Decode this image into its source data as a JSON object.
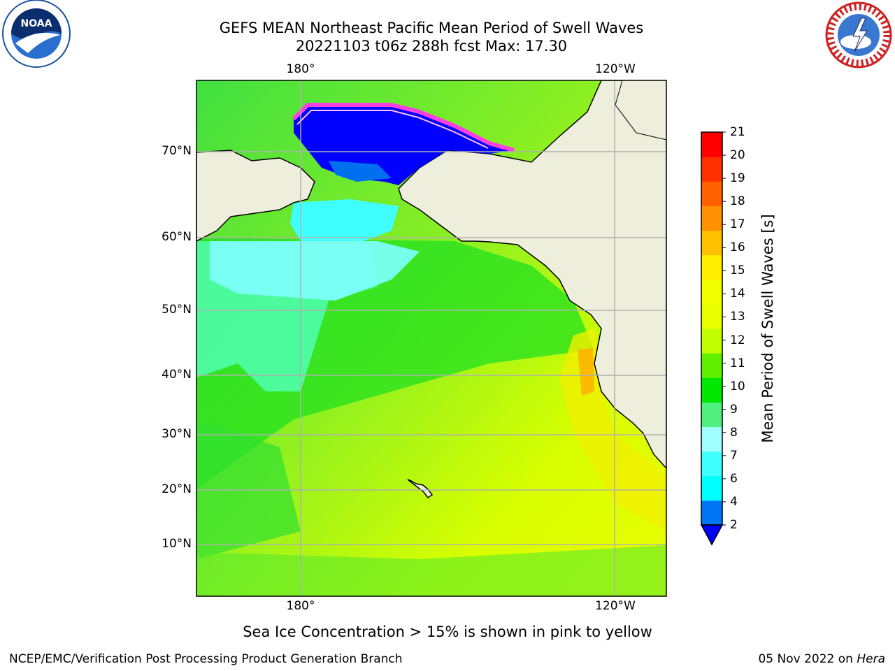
{
  "header": {
    "title_line1": "GEFS MEAN Northeast Pacific Mean Period of Swell Waves",
    "title_line2": "20221103 t06z 288h fcst   Max: 17.30"
  },
  "logos": {
    "left": "noaa-logo",
    "left_text": "NOAA",
    "right": "national-weather-service-logo",
    "right_text": "NATIONAL WEATHER SERVICE"
  },
  "map": {
    "lat_labels": [
      "70°N",
      "60°N",
      "50°N",
      "40°N",
      "30°N",
      "20°N",
      "10°N"
    ],
    "lon_labels_top": [
      "180°",
      "120°W"
    ],
    "lon_labels_bottom": [
      "180°",
      "120°W"
    ],
    "colors": {
      "land": "#eeeedd",
      "grid": "#b0b0b0",
      "coast": "#000000"
    }
  },
  "colorbar": {
    "label": "Mean Period of Swell Waves [s]",
    "ticks": [
      "2",
      "4",
      "6",
      "7",
      "8",
      "9",
      "10",
      "11",
      "12",
      "13",
      "14",
      "15",
      "16",
      "17",
      "18",
      "19",
      "20",
      "21"
    ],
    "colors": [
      "#0075f5",
      "#00ffff",
      "#40ffff",
      "#a0ffff",
      "#50f080",
      "#00e800",
      "#60f000",
      "#c0ff00",
      "#e8ff00",
      "#f0ff00",
      "#ffee00",
      "#ffc000",
      "#ff9000",
      "#ff6000",
      "#ff3000",
      "#ff0000"
    ],
    "under_color": "#0000ff"
  },
  "footnote": "Sea Ice Concentration > 15% is shown in pink to yellow",
  "footer": {
    "left": "NCEP/EMC/Verification Post Processing Product Generation Branch",
    "right_prefix": "05 Nov 2022 on ",
    "right_host": "Hera"
  }
}
